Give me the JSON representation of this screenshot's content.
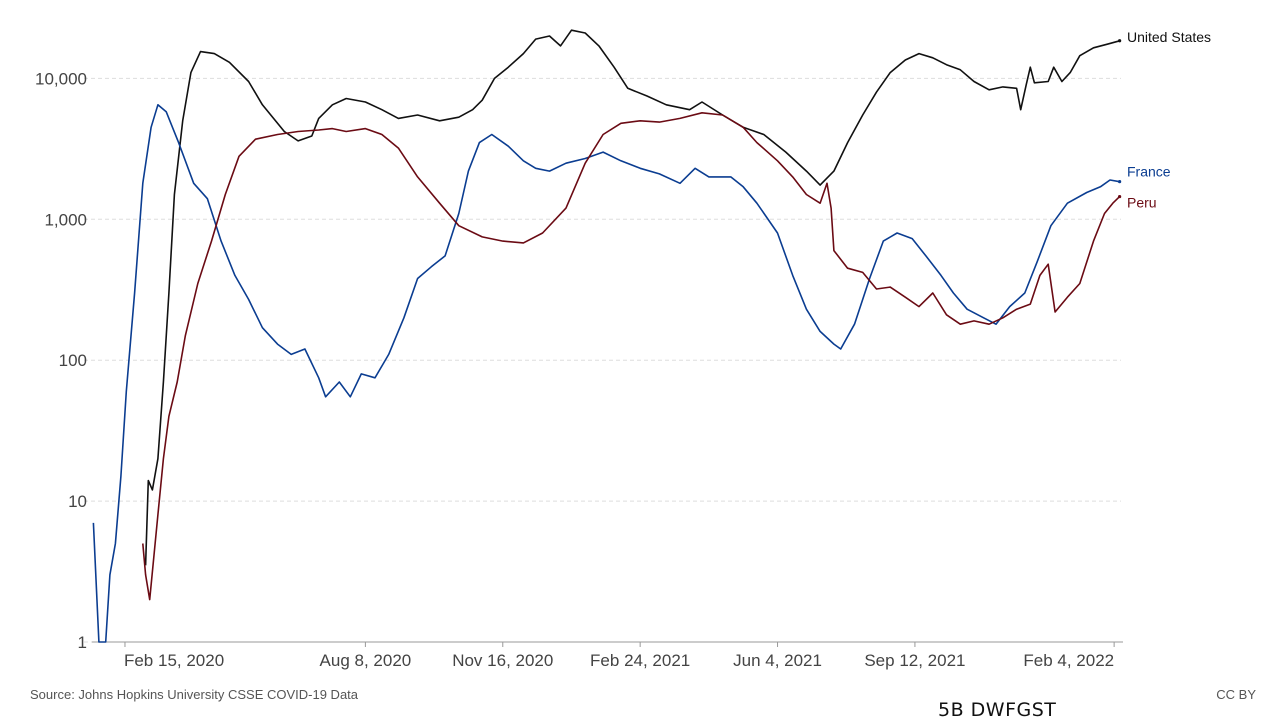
{
  "chart_data": {
    "type": "line",
    "title": "",
    "xlabel": "",
    "ylabel": "",
    "y_scale": "log",
    "ylim": [
      1,
      25000
    ],
    "xlim": [
      "2020-01-22",
      "2022-02-18"
    ],
    "grid": "horizontal dashed",
    "legend": "inline labels at right end of lines",
    "y_ticks": [
      {
        "value": 1,
        "label": "1"
      },
      {
        "value": 10,
        "label": "10"
      },
      {
        "value": 100,
        "label": "100"
      },
      {
        "value": 1000,
        "label": "1,000"
      },
      {
        "value": 10000,
        "label": "10,000"
      }
    ],
    "x_ticks": [
      {
        "date": "2020-02-15",
        "label": "Feb 15, 2020"
      },
      {
        "date": "2020-08-08",
        "label": "Aug 8, 2020"
      },
      {
        "date": "2020-11-16",
        "label": "Nov 16, 2020"
      },
      {
        "date": "2021-02-24",
        "label": "Feb 24, 2021"
      },
      {
        "date": "2021-06-04",
        "label": "Jun 4, 2021"
      },
      {
        "date": "2021-09-12",
        "label": "Sep 12, 2021"
      },
      {
        "date": "2022-02-04",
        "label": "Feb 4, 2022"
      }
    ],
    "series": [
      {
        "name": "United States",
        "color": "#111111",
        "points": [
          [
            "2020-03-01",
            3.5
          ],
          [
            "2020-03-03",
            14
          ],
          [
            "2020-03-06",
            12
          ],
          [
            "2020-03-10",
            20
          ],
          [
            "2020-03-14",
            70
          ],
          [
            "2020-03-18",
            300
          ],
          [
            "2020-03-22",
            1500
          ],
          [
            "2020-03-28",
            5000
          ],
          [
            "2020-04-03",
            11000
          ],
          [
            "2020-04-10",
            15500
          ],
          [
            "2020-04-20",
            15000
          ],
          [
            "2020-05-01",
            13000
          ],
          [
            "2020-05-15",
            9500
          ],
          [
            "2020-05-25",
            6500
          ],
          [
            "2020-06-10",
            4200
          ],
          [
            "2020-06-20",
            3600
          ],
          [
            "2020-06-30",
            3900
          ],
          [
            "2020-07-05",
            5200
          ],
          [
            "2020-07-15",
            6500
          ],
          [
            "2020-07-25",
            7200
          ],
          [
            "2020-08-08",
            6800
          ],
          [
            "2020-08-20",
            6000
          ],
          [
            "2020-09-01",
            5200
          ],
          [
            "2020-09-15",
            5500
          ],
          [
            "2020-10-01",
            5000
          ],
          [
            "2020-10-15",
            5300
          ],
          [
            "2020-10-25",
            6000
          ],
          [
            "2020-11-01",
            7000
          ],
          [
            "2020-11-10",
            10000
          ],
          [
            "2020-11-20",
            12000
          ],
          [
            "2020-12-01",
            15000
          ],
          [
            "2020-12-10",
            19000
          ],
          [
            "2020-12-20",
            20000
          ],
          [
            "2020-12-28",
            17000
          ],
          [
            "2021-01-05",
            22000
          ],
          [
            "2021-01-15",
            21000
          ],
          [
            "2021-01-25",
            17000
          ],
          [
            "2021-02-05",
            12000
          ],
          [
            "2021-02-15",
            8500
          ],
          [
            "2021-03-01",
            7500
          ],
          [
            "2021-03-15",
            6500
          ],
          [
            "2021-04-01",
            6000
          ],
          [
            "2021-04-10",
            6800
          ],
          [
            "2021-04-25",
            5500
          ],
          [
            "2021-05-10",
            4500
          ],
          [
            "2021-05-25",
            4000
          ],
          [
            "2021-06-10",
            3000
          ],
          [
            "2021-06-25",
            2200
          ],
          [
            "2021-07-05",
            1750
          ],
          [
            "2021-07-15",
            2200
          ],
          [
            "2021-07-25",
            3500
          ],
          [
            "2021-08-05",
            5500
          ],
          [
            "2021-08-15",
            8000
          ],
          [
            "2021-08-25",
            11000
          ],
          [
            "2021-09-05",
            13500
          ],
          [
            "2021-09-15",
            15000
          ],
          [
            "2021-09-25",
            14000
          ],
          [
            "2021-10-05",
            12500
          ],
          [
            "2021-10-15",
            11500
          ],
          [
            "2021-10-25",
            9500
          ],
          [
            "2021-11-05",
            8300
          ],
          [
            "2021-11-15",
            8700
          ],
          [
            "2021-11-25",
            8500
          ],
          [
            "2021-11-28",
            6000
          ],
          [
            "2021-12-02",
            9000
          ],
          [
            "2021-12-05",
            12000
          ],
          [
            "2021-12-08",
            9300
          ],
          [
            "2021-12-18",
            9500
          ],
          [
            "2021-12-22",
            12000
          ],
          [
            "2021-12-28",
            9500
          ],
          [
            "2022-01-03",
            11000
          ],
          [
            "2022-01-10",
            14500
          ],
          [
            "2022-01-20",
            16500
          ],
          [
            "2022-01-30",
            17500
          ],
          [
            "2022-02-08",
            18500
          ]
        ]
      },
      {
        "name": "France",
        "color": "#0b3d91",
        "points": [
          [
            "2020-01-23",
            7
          ],
          [
            "2020-01-27",
            1
          ],
          [
            "2020-02-01",
            1
          ],
          [
            "2020-02-04",
            3
          ],
          [
            "2020-02-08",
            5
          ],
          [
            "2020-02-12",
            15
          ],
          [
            "2020-02-16",
            60
          ],
          [
            "2020-02-22",
            300
          ],
          [
            "2020-02-28",
            1800
          ],
          [
            "2020-03-05",
            4500
          ],
          [
            "2020-03-10",
            6500
          ],
          [
            "2020-03-16",
            5800
          ],
          [
            "2020-03-25",
            3500
          ],
          [
            "2020-04-05",
            1800
          ],
          [
            "2020-04-15",
            1400
          ],
          [
            "2020-04-25",
            700
          ],
          [
            "2020-05-05",
            400
          ],
          [
            "2020-05-15",
            270
          ],
          [
            "2020-05-25",
            170
          ],
          [
            "2020-06-05",
            130
          ],
          [
            "2020-06-15",
            110
          ],
          [
            "2020-06-25",
            120
          ],
          [
            "2020-07-05",
            75
          ],
          [
            "2020-07-10",
            55
          ],
          [
            "2020-07-20",
            70
          ],
          [
            "2020-07-28",
            55
          ],
          [
            "2020-08-05",
            80
          ],
          [
            "2020-08-15",
            75
          ],
          [
            "2020-08-25",
            110
          ],
          [
            "2020-09-05",
            200
          ],
          [
            "2020-09-15",
            380
          ],
          [
            "2020-09-25",
            460
          ],
          [
            "2020-10-05",
            550
          ],
          [
            "2020-10-15",
            1100
          ],
          [
            "2020-10-22",
            2200
          ],
          [
            "2020-10-30",
            3500
          ],
          [
            "2020-11-08",
            4000
          ],
          [
            "2020-11-20",
            3300
          ],
          [
            "2020-12-01",
            2600
          ],
          [
            "2020-12-10",
            2300
          ],
          [
            "2020-12-20",
            2200
          ],
          [
            "2021-01-01",
            2500
          ],
          [
            "2021-01-15",
            2700
          ],
          [
            "2021-01-28",
            3000
          ],
          [
            "2021-02-10",
            2600
          ],
          [
            "2021-02-24",
            2300
          ],
          [
            "2021-03-10",
            2100
          ],
          [
            "2021-03-25",
            1800
          ],
          [
            "2021-04-05",
            2300
          ],
          [
            "2021-04-15",
            2000
          ],
          [
            "2021-05-01",
            2000
          ],
          [
            "2021-05-10",
            1700
          ],
          [
            "2021-05-20",
            1300
          ],
          [
            "2021-06-04",
            800
          ],
          [
            "2021-06-15",
            400
          ],
          [
            "2021-06-25",
            230
          ],
          [
            "2021-07-05",
            160
          ],
          [
            "2021-07-15",
            130
          ],
          [
            "2021-07-20",
            120
          ],
          [
            "2021-07-30",
            180
          ],
          [
            "2021-08-10",
            380
          ],
          [
            "2021-08-20",
            700
          ],
          [
            "2021-08-30",
            800
          ],
          [
            "2021-09-10",
            730
          ],
          [
            "2021-09-20",
            550
          ],
          [
            "2021-10-01",
            400
          ],
          [
            "2021-10-10",
            300
          ],
          [
            "2021-10-20",
            230
          ],
          [
            "2021-11-01",
            200
          ],
          [
            "2021-11-10",
            180
          ],
          [
            "2021-11-20",
            240
          ],
          [
            "2021-12-01",
            300
          ],
          [
            "2021-12-10",
            500
          ],
          [
            "2021-12-20",
            900
          ],
          [
            "2022-01-01",
            1300
          ],
          [
            "2022-01-15",
            1550
          ],
          [
            "2022-01-25",
            1700
          ],
          [
            "2022-02-01",
            1900
          ],
          [
            "2022-02-08",
            1850
          ]
        ]
      },
      {
        "name": "Peru",
        "color": "#6b0b14",
        "points": [
          [
            "2020-02-28",
            5
          ],
          [
            "2020-03-01",
            3
          ],
          [
            "2020-03-04",
            2
          ],
          [
            "2020-03-07",
            4
          ],
          [
            "2020-03-10",
            8
          ],
          [
            "2020-03-14",
            20
          ],
          [
            "2020-03-18",
            40
          ],
          [
            "2020-03-24",
            70
          ],
          [
            "2020-03-30",
            150
          ],
          [
            "2020-04-08",
            350
          ],
          [
            "2020-04-18",
            700
          ],
          [
            "2020-04-28",
            1500
          ],
          [
            "2020-05-08",
            2800
          ],
          [
            "2020-05-20",
            3700
          ],
          [
            "2020-06-05",
            4000
          ],
          [
            "2020-06-20",
            4200
          ],
          [
            "2020-07-05",
            4300
          ],
          [
            "2020-07-15",
            4400
          ],
          [
            "2020-07-25",
            4200
          ],
          [
            "2020-08-08",
            4400
          ],
          [
            "2020-08-20",
            4000
          ],
          [
            "2020-09-01",
            3200
          ],
          [
            "2020-09-15",
            2000
          ],
          [
            "2020-10-01",
            1300
          ],
          [
            "2020-10-15",
            900
          ],
          [
            "2020-11-01",
            750
          ],
          [
            "2020-11-16",
            700
          ],
          [
            "2020-12-01",
            680
          ],
          [
            "2020-12-15",
            800
          ],
          [
            "2021-01-01",
            1200
          ],
          [
            "2021-01-15",
            2500
          ],
          [
            "2021-01-28",
            4000
          ],
          [
            "2021-02-10",
            4800
          ],
          [
            "2021-02-24",
            5000
          ],
          [
            "2021-03-10",
            4900
          ],
          [
            "2021-03-25",
            5200
          ],
          [
            "2021-04-10",
            5700
          ],
          [
            "2021-04-25",
            5500
          ],
          [
            "2021-05-10",
            4500
          ],
          [
            "2021-05-20",
            3500
          ],
          [
            "2021-06-04",
            2600
          ],
          [
            "2021-06-15",
            2000
          ],
          [
            "2021-06-25",
            1500
          ],
          [
            "2021-07-05",
            1300
          ],
          [
            "2021-07-10",
            1800
          ],
          [
            "2021-07-13",
            1200
          ],
          [
            "2021-07-15",
            600
          ],
          [
            "2021-07-25",
            450
          ],
          [
            "2021-08-05",
            420
          ],
          [
            "2021-08-15",
            320
          ],
          [
            "2021-08-25",
            330
          ],
          [
            "2021-09-05",
            280
          ],
          [
            "2021-09-15",
            240
          ],
          [
            "2021-09-25",
            300
          ],
          [
            "2021-10-05",
            210
          ],
          [
            "2021-10-15",
            180
          ],
          [
            "2021-10-25",
            190
          ],
          [
            "2021-11-05",
            180
          ],
          [
            "2021-11-15",
            200
          ],
          [
            "2021-11-25",
            230
          ],
          [
            "2021-12-05",
            250
          ],
          [
            "2021-12-12",
            400
          ],
          [
            "2021-12-18",
            480
          ],
          [
            "2021-12-23",
            220
          ],
          [
            "2022-01-01",
            280
          ],
          [
            "2022-01-10",
            350
          ],
          [
            "2022-01-20",
            700
          ],
          [
            "2022-01-28",
            1100
          ],
          [
            "2022-02-03",
            1300
          ],
          [
            "2022-02-08",
            1450
          ]
        ]
      }
    ]
  },
  "footer": {
    "source": "Source: Johns Hopkins University CSSE COVID-19 Data",
    "license": "CC BY",
    "watermark": "5B DWFGST"
  }
}
